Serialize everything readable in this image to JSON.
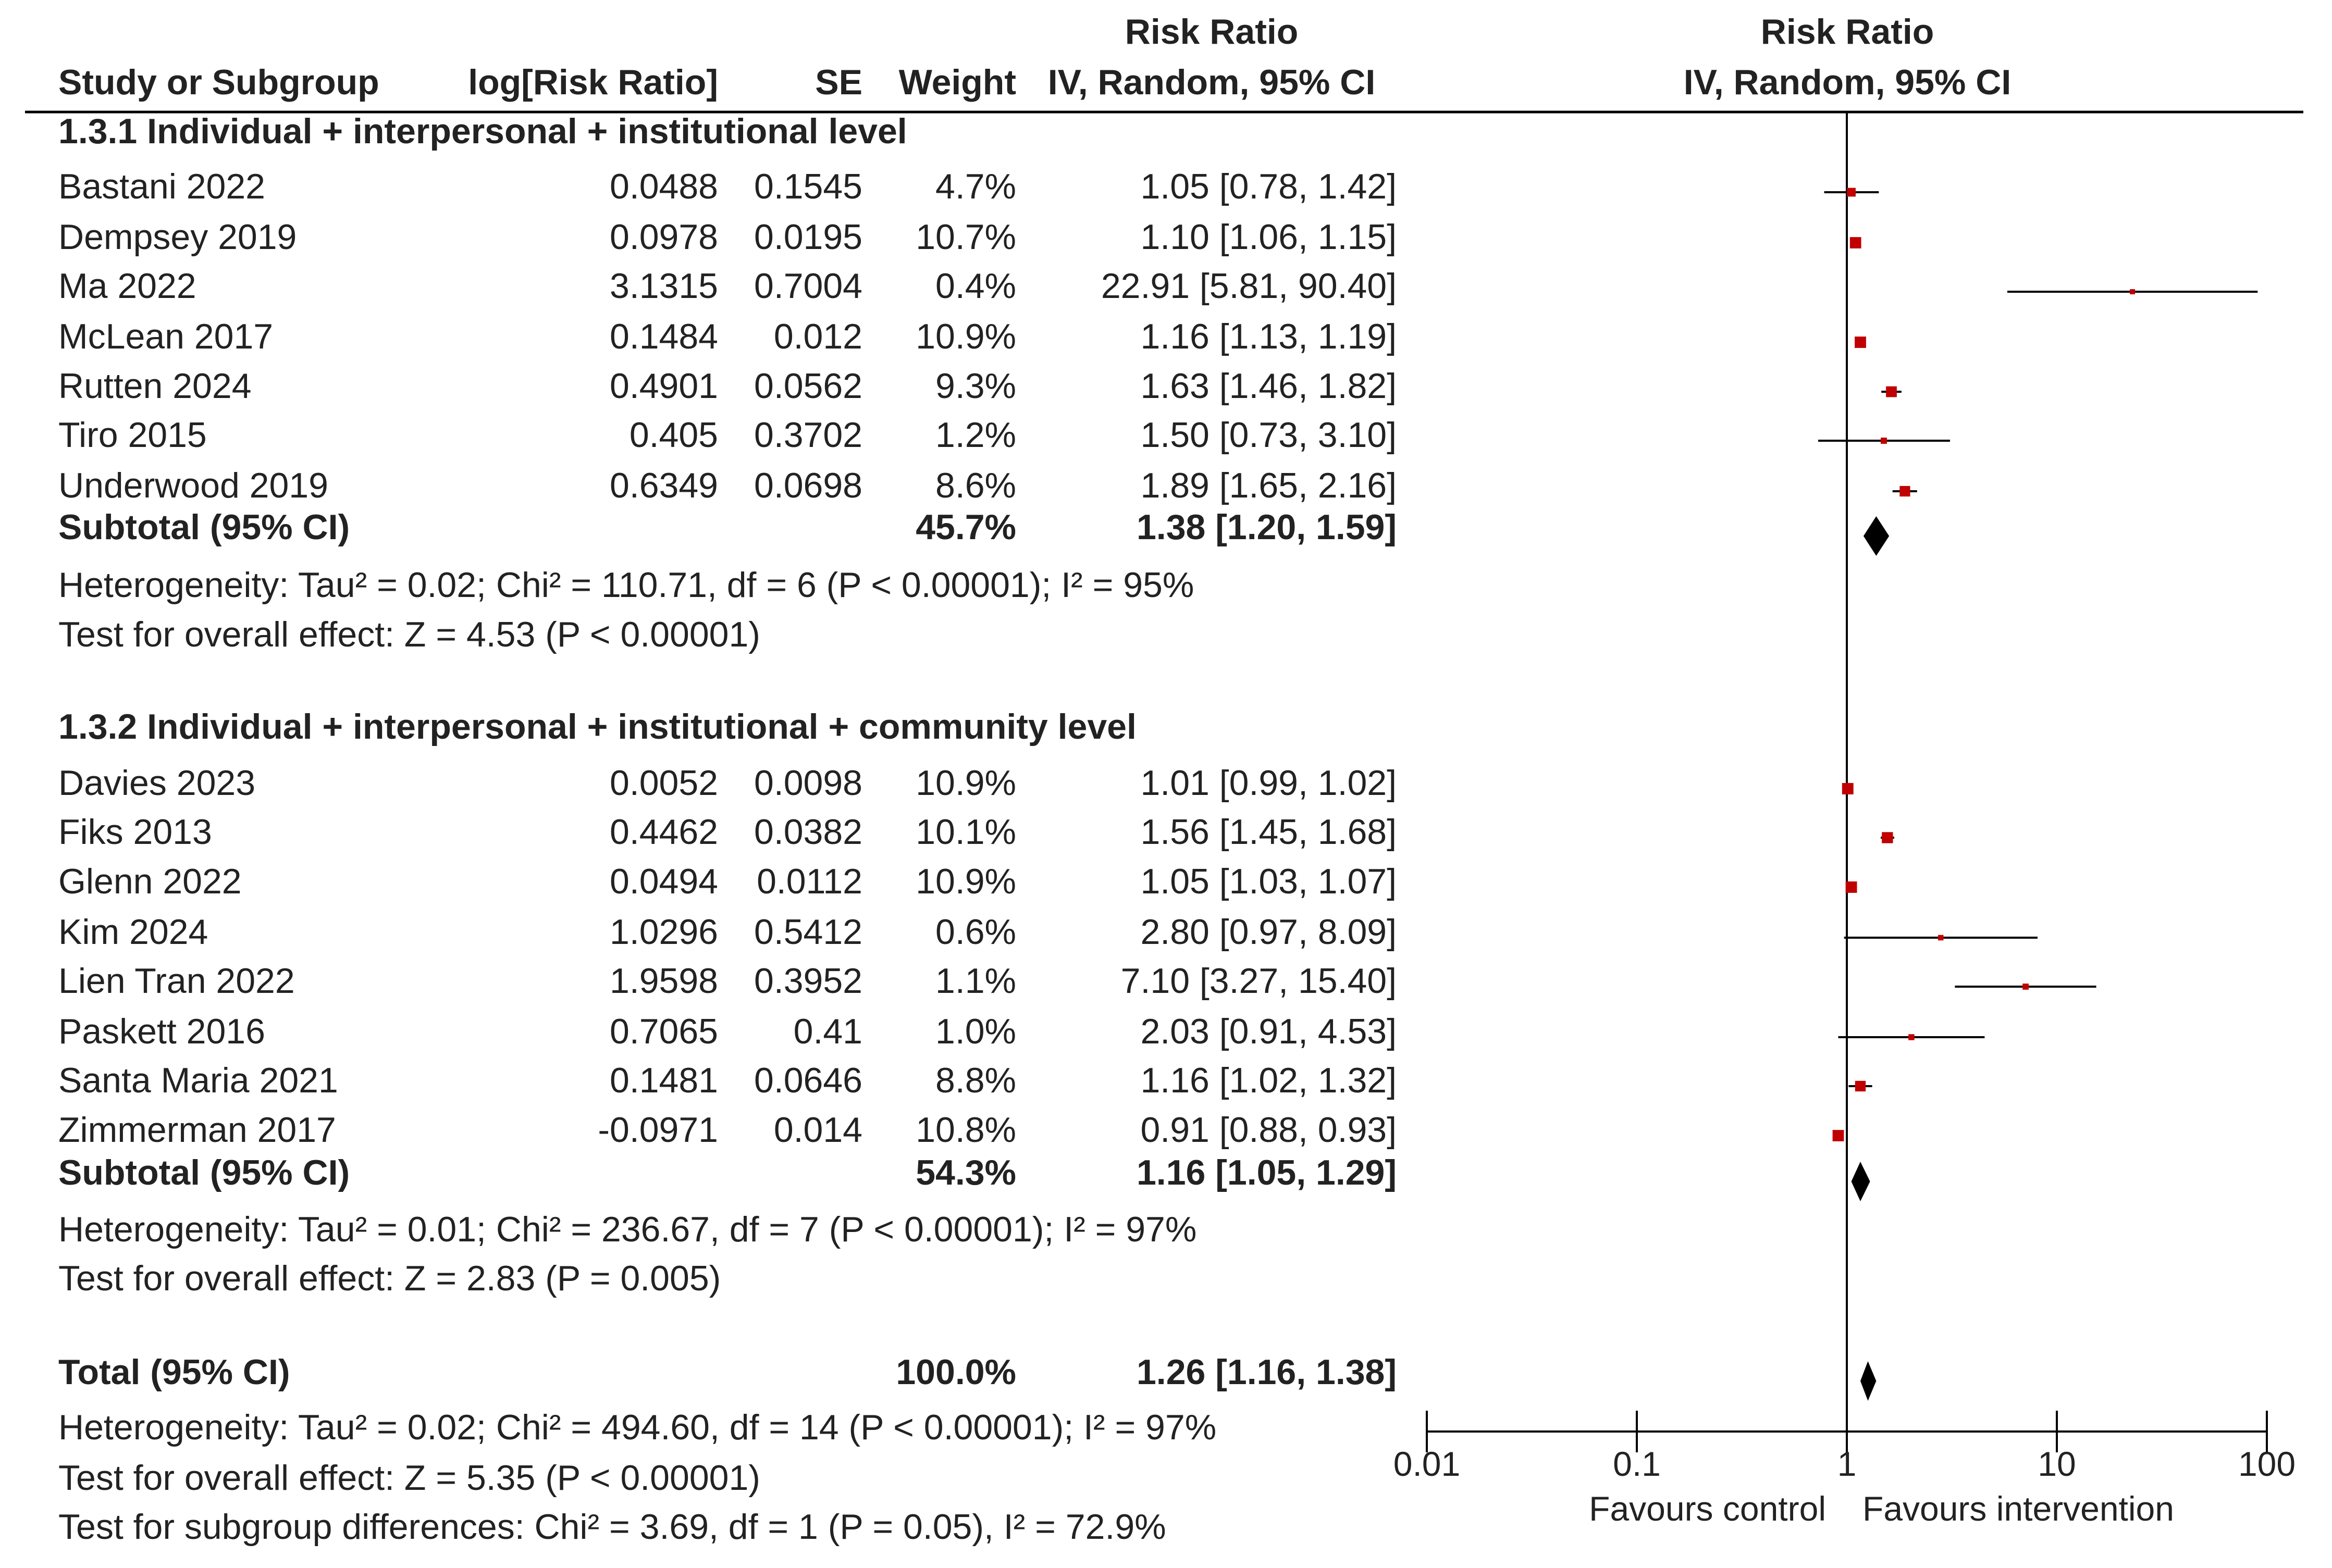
{
  "chart_data": {
    "type": "forest",
    "title": "Risk Ratio",
    "plot_header": [
      "Risk Ratio",
      "IV, Random, 95% CI"
    ],
    "columns": {
      "study": "Study or Subgroup",
      "log_rr": "log[Risk Ratio]",
      "se": "SE",
      "weight": "Weight",
      "rr_header": [
        "Risk Ratio",
        "IV, Random, 95% CI"
      ]
    },
    "x_scale": "log",
    "xlim": [
      0.01,
      100
    ],
    "ticks": [
      {
        "value": 0.01,
        "label": "0.01"
      },
      {
        "value": 0.1,
        "label": "0.1"
      },
      {
        "value": 1,
        "label": "1"
      },
      {
        "value": 10,
        "label": "10"
      },
      {
        "value": 100,
        "label": "100"
      }
    ],
    "favours_left": "Favours control",
    "favours_right": "Favours intervention",
    "subgroups": [
      {
        "title": "1.3.1 Individual + interpersonal + institutional level",
        "studies": [
          {
            "name": "Bastani 2022",
            "log_rr": "0.0488",
            "se": "0.1545",
            "weight": "4.7%",
            "ci_text": "1.05 [0.78, 1.42]",
            "rr": 1.05,
            "lo": 0.78,
            "hi": 1.42,
            "w": 4.7
          },
          {
            "name": "Dempsey 2019",
            "log_rr": "0.0978",
            "se": "0.0195",
            "weight": "10.7%",
            "ci_text": "1.10 [1.06, 1.15]",
            "rr": 1.1,
            "lo": 1.06,
            "hi": 1.15,
            "w": 10.7
          },
          {
            "name": "Ma 2022",
            "log_rr": "3.1315",
            "se": "0.7004",
            "weight": "0.4%",
            "ci_text": "22.91 [5.81, 90.40]",
            "rr": 22.91,
            "lo": 5.81,
            "hi": 90.4,
            "w": 0.4
          },
          {
            "name": "McLean 2017",
            "log_rr": "0.1484",
            "se": "0.012",
            "weight": "10.9%",
            "ci_text": "1.16 [1.13, 1.19]",
            "rr": 1.16,
            "lo": 1.13,
            "hi": 1.19,
            "w": 10.9
          },
          {
            "name": "Rutten 2024",
            "log_rr": "0.4901",
            "se": "0.0562",
            "weight": "9.3%",
            "ci_text": "1.63 [1.46, 1.82]",
            "rr": 1.63,
            "lo": 1.46,
            "hi": 1.82,
            "w": 9.3
          },
          {
            "name": "Tiro 2015",
            "log_rr": "0.405",
            "se": "0.3702",
            "weight": "1.2%",
            "ci_text": "1.50 [0.73, 3.10]",
            "rr": 1.5,
            "lo": 0.73,
            "hi": 3.1,
            "w": 1.2
          },
          {
            "name": "Underwood 2019",
            "log_rr": "0.6349",
            "se": "0.0698",
            "weight": "8.6%",
            "ci_text": "1.89 [1.65, 2.16]",
            "rr": 1.89,
            "lo": 1.65,
            "hi": 2.16,
            "w": 8.6
          }
        ],
        "subtotal": {
          "label": "Subtotal (95% CI)",
          "weight": "45.7%",
          "ci_text": "1.38 [1.20, 1.59]",
          "rr": 1.38,
          "lo": 1.2,
          "hi": 1.59
        },
        "heterogeneity": "Heterogeneity: Tau² = 0.02; Chi² = 110.71, df = 6 (P < 0.00001); I² = 95%",
        "overall": "Test for overall effect: Z = 4.53 (P < 0.00001)"
      },
      {
        "title": "1.3.2 Individual + interpersonal + institutional + community level",
        "studies": [
          {
            "name": "Davies 2023",
            "log_rr": "0.0052",
            "se": "0.0098",
            "weight": "10.9%",
            "ci_text": "1.01 [0.99, 1.02]",
            "rr": 1.01,
            "lo": 0.99,
            "hi": 1.02,
            "w": 10.9
          },
          {
            "name": "Fiks 2013",
            "log_rr": "0.4462",
            "se": "0.0382",
            "weight": "10.1%",
            "ci_text": "1.56 [1.45, 1.68]",
            "rr": 1.56,
            "lo": 1.45,
            "hi": 1.68,
            "w": 10.1
          },
          {
            "name": "Glenn 2022",
            "log_rr": "0.0494",
            "se": "0.0112",
            "weight": "10.9%",
            "ci_text": "1.05 [1.03, 1.07]",
            "rr": 1.05,
            "lo": 1.03,
            "hi": 1.07,
            "w": 10.9
          },
          {
            "name": "Kim 2024",
            "log_rr": "1.0296",
            "se": "0.5412",
            "weight": "0.6%",
            "ci_text": "2.80 [0.97, 8.09]",
            "rr": 2.8,
            "lo": 0.97,
            "hi": 8.09,
            "w": 0.6
          },
          {
            "name": "Lien Tran 2022",
            "log_rr": "1.9598",
            "se": "0.3952",
            "weight": "1.1%",
            "ci_text": "7.10 [3.27, 15.40]",
            "rr": 7.1,
            "lo": 3.27,
            "hi": 15.4,
            "w": 1.1
          },
          {
            "name": "Paskett 2016",
            "log_rr": "0.7065",
            "se": "0.41",
            "weight": "1.0%",
            "ci_text": "2.03 [0.91, 4.53]",
            "rr": 2.03,
            "lo": 0.91,
            "hi": 4.53,
            "w": 1.0
          },
          {
            "name": "Santa Maria 2021",
            "log_rr": "0.1481",
            "se": "0.0646",
            "weight": "8.8%",
            "ci_text": "1.16 [1.02, 1.32]",
            "rr": 1.16,
            "lo": 1.02,
            "hi": 1.32,
            "w": 8.8
          },
          {
            "name": "Zimmerman 2017",
            "log_rr": "-0.0971",
            "se": "0.014",
            "weight": "10.8%",
            "ci_text": "0.91 [0.88, 0.93]",
            "rr": 0.91,
            "lo": 0.88,
            "hi": 0.93,
            "w": 10.8
          }
        ],
        "subtotal": {
          "label": "Subtotal (95% CI)",
          "weight": "54.3%",
          "ci_text": "1.16 [1.05, 1.29]",
          "rr": 1.16,
          "lo": 1.05,
          "hi": 1.29
        },
        "heterogeneity": "Heterogeneity: Tau² = 0.01; Chi² = 236.67, df = 7 (P < 0.00001); I² = 97%",
        "overall": "Test for overall effect: Z = 2.83 (P = 0.005)"
      }
    ],
    "total": {
      "label": "Total (95% CI)",
      "weight": "100.0%",
      "ci_text": "1.26 [1.16, 1.38]",
      "rr": 1.26,
      "lo": 1.16,
      "hi": 1.38,
      "heterogeneity": "Heterogeneity: Tau² = 0.02; Chi² = 494.60, df = 14 (P < 0.00001); I² = 97%",
      "overall": "Test for overall effect: Z = 5.35 (P < 0.00001)",
      "subgroup_diff": "Test for subgroup differences: Chi² = 3.69, df = 1 (P = 0.05), I² = 72.9%"
    },
    "colors": {
      "marker": "#c00000",
      "diamond": "#000000",
      "line": "#000000",
      "text": "#222222"
    }
  }
}
